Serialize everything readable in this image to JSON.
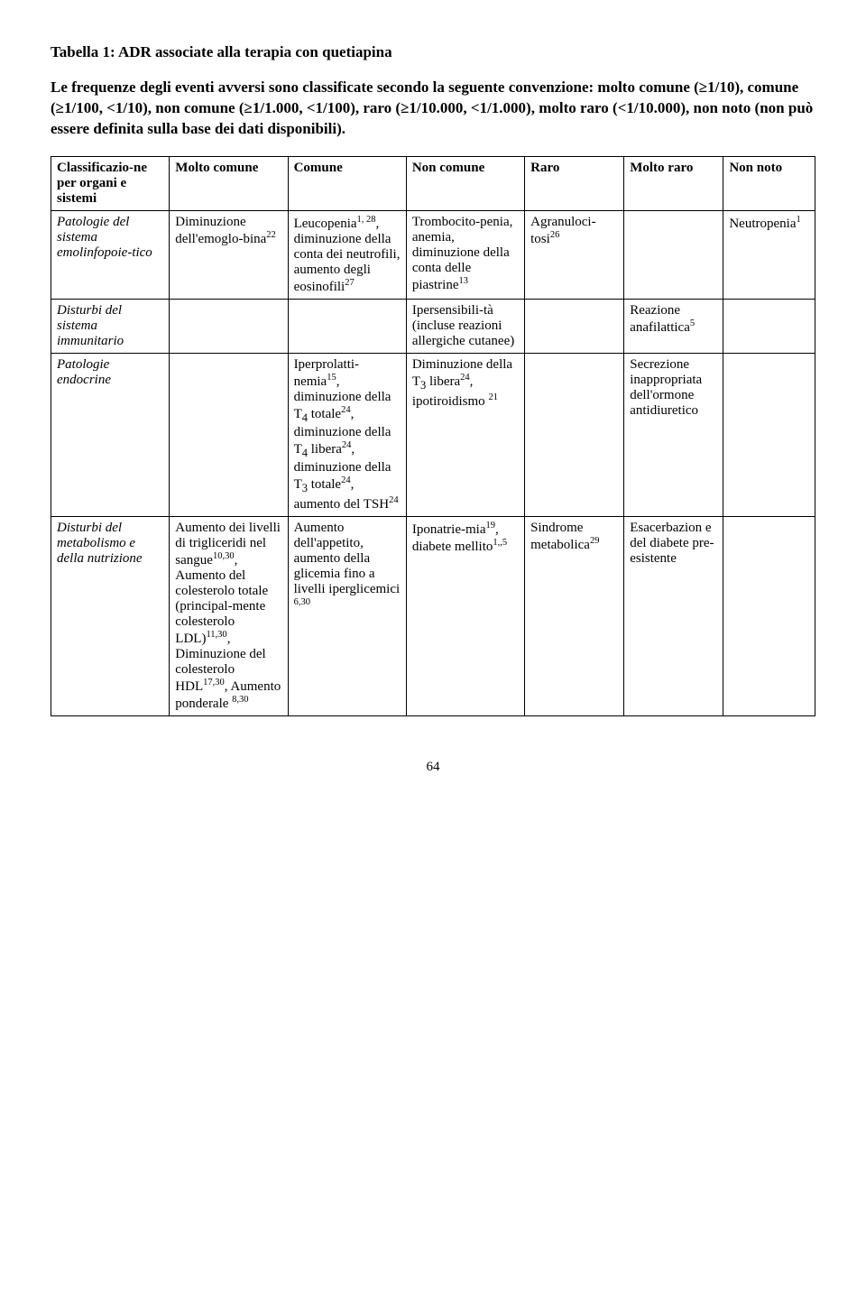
{
  "title": "Tabella 1: ADR associate alla terapia con quetiapina",
  "intro": "Le frequenze degli eventi avversi sono classificate secondo la seguente convenzione: molto comune (≥1/10), comune (≥1/100, <1/10), non comune (≥1/1.000, <1/100), raro (≥1/10.000, <1/1.000), molto raro (<1/10.000), non noto (non può essere definita sulla base dei dati disponibili).",
  "columns": [
    "Classificazio-ne per organi e sistemi",
    "Molto comune",
    "Comune",
    "Non comune",
    "Raro",
    "Molto raro",
    "Non noto"
  ],
  "col_widths": [
    "15.5%",
    "15.5%",
    "15.5%",
    "15.5%",
    "13%",
    "13%",
    "12%"
  ],
  "rows": [
    {
      "head": "Patologie del sistema emolinfopoie-tico",
      "cells": [
        "Diminuzione dell'emoglo-bina<sup>22</sup>",
        "Leucopenia<sup>1, 28</sup>, diminuzione della conta dei neutrofili, aumento degli eosinofili<sup>27</sup>",
        "Trombocito-penia, anemia, diminuzione della conta delle piastrine<sup>13</sup>",
        "Agranuloci-tosi<sup>26</sup>",
        "",
        "Neutropenia<sup>1</sup>"
      ]
    },
    {
      "head": "Disturbi del sistema immunitario",
      "cells": [
        "",
        "",
        "Ipersensibili-tà (incluse reazioni allergiche cutanee)",
        "",
        "Reazione anafilattica<sup>5</sup>",
        ""
      ]
    },
    {
      "head": "Patologie endocrine",
      "cells": [
        "",
        "Iperprolatti-nemia<sup>15</sup>, diminuzione della T<sub>4</sub> totale<sup>24</sup>, diminuzione della T<sub>4</sub> libera<sup>24</sup>, diminuzione della T<sub>3</sub> totale<sup>24</sup>, aumento del TSH<sup>24</sup>",
        "Diminuzione della T<sub>3</sub> libera<sup>24</sup>, ipotiroidismo <sup>21</sup>",
        "",
        "Secrezione inappropriata dell'ormone antidiuretico",
        ""
      ]
    },
    {
      "head": "Disturbi del metabolismo e della nutrizione",
      "cells": [
        "Aumento dei livelli di trigliceridi nel sangue<sup>10,30</sup>, Aumento del colesterolo totale (principal-mente colesterolo LDL)<sup>11,30</sup>, Diminuzione del colesterolo HDL<sup>17,30</sup>, Aumento ponderale <sup>8,30</sup>",
        "Aumento dell'appetito, aumento della glicemia fino a livelli iperglicemici <sup>6,30</sup>",
        "Iponatrie-mia<sup>19</sup>, diabete mellito<sup>1,,5</sup>",
        "Sindrome metabolica<sup>29</sup>",
        "Esacerbazion e del diabete pre-esistente",
        ""
      ]
    }
  ],
  "page_number": "64"
}
